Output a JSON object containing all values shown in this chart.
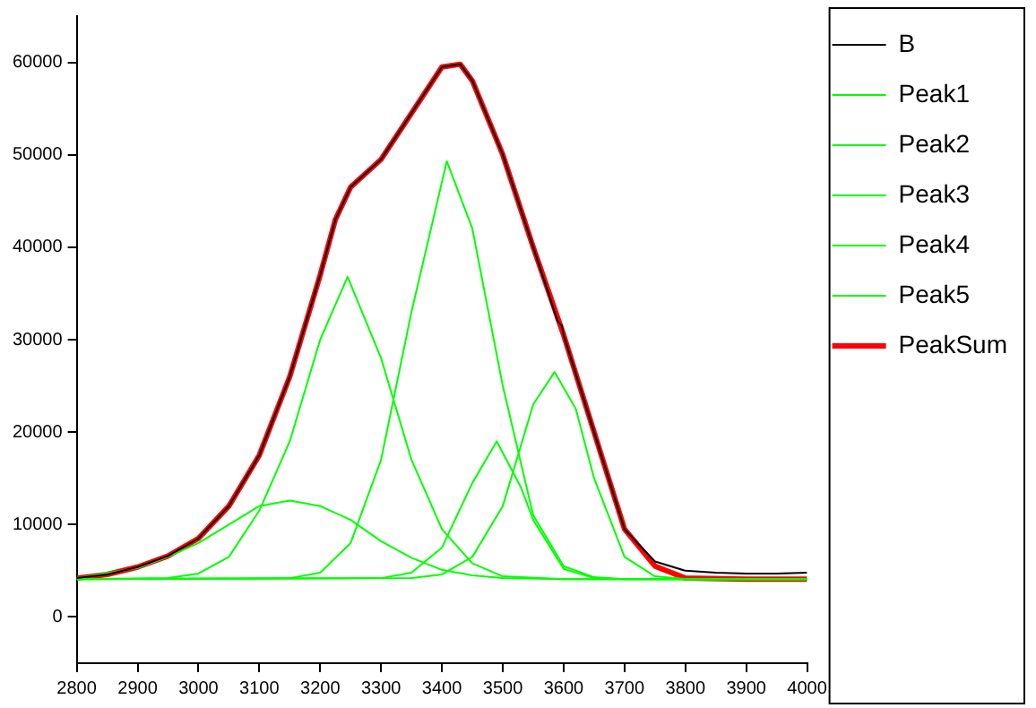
{
  "chart_data": {
    "type": "line",
    "xlim": [
      2800,
      4000
    ],
    "xticks": [
      2800,
      2900,
      3000,
      3100,
      3200,
      3300,
      3400,
      3500,
      3600,
      3700,
      3800,
      3900,
      4000
    ],
    "ylim": [
      -5000,
      65000
    ],
    "yticks": [
      0,
      10000,
      20000,
      30000,
      40000,
      50000,
      60000
    ],
    "grid": false,
    "legend": "top right",
    "marker": "none",
    "line_style": "solid",
    "series": [
      {
        "name": "B",
        "color": "#000000",
        "x": [
          2800,
          2850,
          2900,
          2950,
          3000,
          3050,
          3100,
          3150,
          3200,
          3225,
          3250,
          3275,
          3300,
          3350,
          3400,
          3430,
          3450,
          3500,
          3550,
          3590,
          3597,
          3600,
          3650,
          3700,
          3750,
          3800,
          3850,
          3900,
          3950,
          4000
        ],
        "values": [
          4200,
          4600,
          5400,
          6600,
          8500,
          12000,
          17500,
          26000,
          37000,
          43000,
          46500,
          48000,
          49500,
          54500,
          59500,
          59800,
          58000,
          50000,
          40000,
          32000,
          31500,
          30500,
          20000,
          9500,
          6000,
          5000,
          4800,
          4700,
          4700,
          4800
        ]
      },
      {
        "name": "Peak1",
        "color": "#00ff00",
        "x": [
          2800,
          2900,
          2950,
          3000,
          3050,
          3100,
          3150,
          3200,
          3250,
          3300,
          3350,
          3400,
          3450,
          3500,
          3600,
          4000
        ],
        "values": [
          4200,
          5300,
          6500,
          8000,
          10000,
          12000,
          12600,
          12000,
          10500,
          8200,
          6400,
          5100,
          4500,
          4200,
          4100,
          4100
        ]
      },
      {
        "name": "Peak2",
        "color": "#00ff00",
        "x": [
          2800,
          2950,
          3000,
          3050,
          3100,
          3150,
          3200,
          3245,
          3300,
          3350,
          3400,
          3450,
          3500,
          3600,
          4000
        ],
        "values": [
          4100,
          4200,
          4700,
          6500,
          11500,
          19000,
          30000,
          36800,
          28000,
          17000,
          9500,
          5800,
          4400,
          4100,
          4100
        ]
      },
      {
        "name": "Peak3",
        "color": "#00ff00",
        "x": [
          2800,
          3150,
          3200,
          3250,
          3300,
          3350,
          3408,
          3450,
          3500,
          3550,
          3600,
          3650,
          3700,
          4000
        ],
        "values": [
          4100,
          4200,
          4800,
          8000,
          17000,
          33000,
          49300,
          42000,
          25000,
          11000,
          5500,
          4300,
          4100,
          4100
        ]
      },
      {
        "name": "Peak4",
        "color": "#00ff00",
        "x": [
          2800,
          3300,
          3350,
          3400,
          3450,
          3490,
          3530,
          3550,
          3600,
          3650,
          3700,
          4000
        ],
        "values": [
          4100,
          4200,
          4800,
          7500,
          14500,
          19000,
          14000,
          10500,
          5200,
          4200,
          4100,
          4100
        ]
      },
      {
        "name": "Peak5",
        "color": "#00ff00",
        "x": [
          2800,
          3350,
          3400,
          3450,
          3500,
          3550,
          3585,
          3620,
          3650,
          3700,
          3750,
          3800,
          4000
        ],
        "values": [
          4100,
          4200,
          4600,
          6500,
          12000,
          23000,
          26500,
          22500,
          15000,
          6500,
          4400,
          4100,
          4100
        ]
      },
      {
        "name": "PeakSum",
        "color": "#ff0000",
        "x": [
          2800,
          2850,
          2900,
          2950,
          3000,
          3050,
          3100,
          3150,
          3200,
          3225,
          3250,
          3275,
          3300,
          3350,
          3400,
          3430,
          3450,
          3500,
          3550,
          3600,
          3650,
          3700,
          3750,
          3800,
          3900,
          4000
        ],
        "values": [
          4200,
          4600,
          5400,
          6600,
          8500,
          12000,
          17500,
          26000,
          37000,
          43000,
          46500,
          48000,
          49500,
          54500,
          59500,
          59800,
          58000,
          50000,
          40000,
          30500,
          20000,
          9500,
          5500,
          4200,
          4100,
          4100
        ]
      }
    ]
  }
}
